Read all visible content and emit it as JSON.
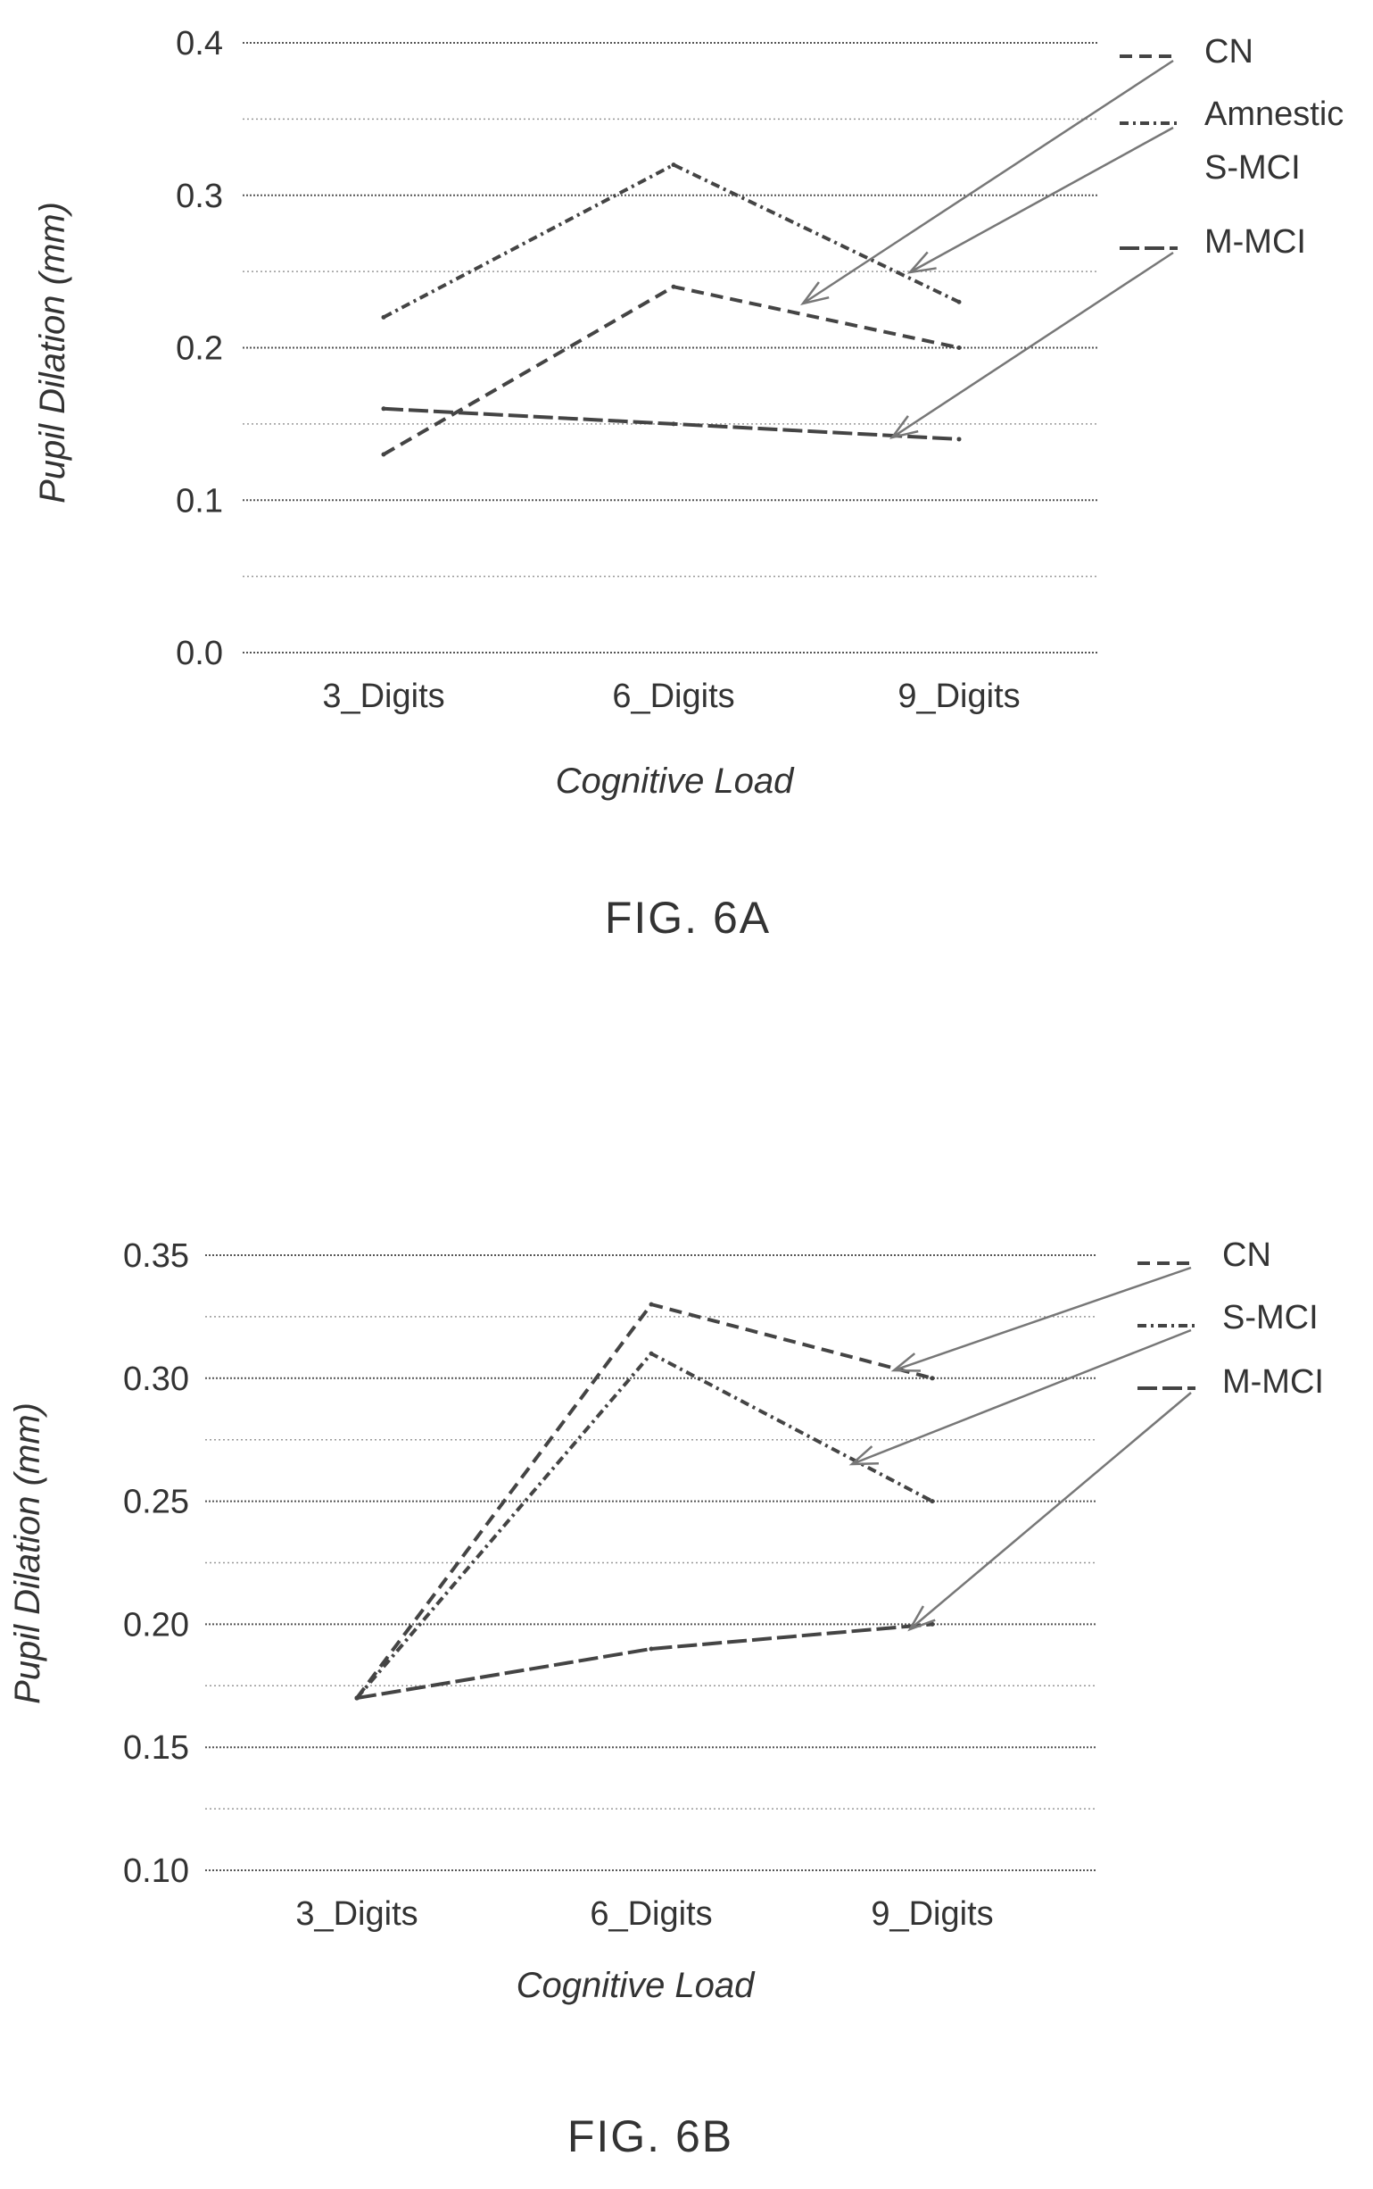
{
  "figures": [
    {
      "id": "fig6a",
      "caption": "FIG. 6A",
      "chart_data": {
        "type": "line",
        "title": "",
        "xlabel": "Cognitive Load",
        "ylabel": "Pupil Dilation (mm)",
        "categories": [
          "3_Digits",
          "6_Digits",
          "9_Digits"
        ],
        "ylim": [
          0.0,
          0.4
        ],
        "yticks": [
          "0.0",
          "0.1",
          "0.2",
          "0.3",
          "0.4"
        ],
        "grid": true,
        "legend_position": "right",
        "series": [
          {
            "name": "CN",
            "values": [
              0.13,
              0.24,
              0.2
            ],
            "dash": "14 8"
          },
          {
            "name": "Amnestic S-MCI",
            "values": [
              0.22,
              0.32,
              0.23
            ],
            "dash": "10 5 3 5"
          },
          {
            "name": "M-MCI",
            "values": [
              0.16,
              0.15,
              0.14
            ],
            "dash": "22 6"
          }
        ]
      },
      "legend": [
        {
          "series": "CN",
          "lines": [
            "CN"
          ]
        },
        {
          "series": "Amnestic S-MCI",
          "lines": [
            "Amnestic",
            "S-MCI"
          ]
        },
        {
          "series": "M-MCI",
          "lines": [
            "M-MCI"
          ]
        }
      ]
    },
    {
      "id": "fig6b",
      "caption": "FIG. 6B",
      "chart_data": {
        "type": "line",
        "title": "",
        "xlabel": "Cognitive Load",
        "ylabel": "Pupil Dilation (mm)",
        "categories": [
          "3_Digits",
          "6_Digits",
          "9_Digits"
        ],
        "ylim": [
          0.1,
          0.35
        ],
        "yticks": [
          "0.10",
          "0.15",
          "0.20",
          "0.25",
          "0.30",
          "0.35"
        ],
        "grid": true,
        "legend_position": "right",
        "series": [
          {
            "name": "CN",
            "values": [
              0.17,
              0.33,
              0.3
            ],
            "dash": "14 8"
          },
          {
            "name": "S-MCI",
            "values": [
              0.17,
              0.31,
              0.25
            ],
            "dash": "10 5 3 5"
          },
          {
            "name": "M-MCI",
            "values": [
              0.17,
              0.19,
              0.2
            ],
            "dash": "22 6"
          }
        ]
      },
      "legend": [
        {
          "series": "CN",
          "lines": [
            "CN"
          ]
        },
        {
          "series": "S-MCI",
          "lines": [
            "S-MCI"
          ]
        },
        {
          "series": "M-MCI",
          "lines": [
            "M-MCI"
          ]
        }
      ]
    }
  ]
}
